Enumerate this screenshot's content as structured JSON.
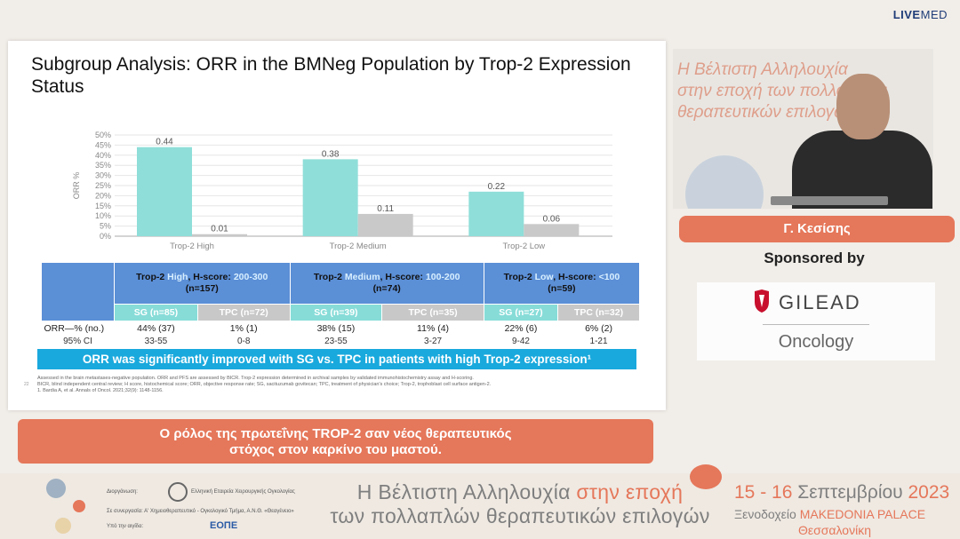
{
  "brand": {
    "live": "LIVE",
    "med": "MED"
  },
  "slide": {
    "title": "Subgroup Analysis: ORR in the BMNeg Population by Trop-2 Expression Status",
    "page_number": "22",
    "callout": "ORR was significantly improved with SG vs. TPC in patients with high Trop-2 expression¹",
    "footnote_1": "Assessed in the brain metastases-negative population. ORR and PFS are assessed by BICR. Trop-2 expression determined in archival samples by validated immunohistochemistry assay and H-scoring.",
    "footnote_2": "BICR, blind independent central review; H score, histochemical score; ORR, objective response rate; SG, sacituzumab govitecan; TPC, treatment of physician's choice; Trop-2, trophoblast cell surface antigen-2.",
    "footnote_3": "1. Bardia A, et al. Annals of Oncol. 2021;32(9): 1148-1156."
  },
  "chart_data": {
    "type": "bar",
    "ylabel": "ORR %",
    "ylim": [
      0,
      50
    ],
    "yticks": [
      "0%",
      "5%",
      "10%",
      "15%",
      "20%",
      "25%",
      "30%",
      "35%",
      "40%",
      "45%",
      "50%"
    ],
    "categories": [
      "Trop-2 High",
      "Trop-2 Medium",
      "Trop-2 Low"
    ],
    "series": [
      {
        "name": "SG",
        "color": "#8fded9",
        "values": [
          0.44,
          0.38,
          0.22
        ]
      },
      {
        "name": "TPC",
        "color": "#c9c9c9",
        "values": [
          0.01,
          0.11,
          0.06
        ]
      }
    ],
    "labels": [
      [
        "0.44",
        "0.38",
        "0.22"
      ],
      [
        "0.01",
        "0.11",
        "0.06"
      ]
    ]
  },
  "table": {
    "groups": [
      {
        "pre": "Trop-2 ",
        "hi": "High",
        "mid": ", H-score: ",
        "score": "200-300",
        "n": "(n=157)"
      },
      {
        "pre": "Trop-2 ",
        "hi": "Medium",
        "mid": ", H-score: ",
        "score": "100-200",
        "n": "(n=74)"
      },
      {
        "pre": "Trop-2 ",
        "hi": "Low",
        "mid": ", H-score: ",
        "score": "<100",
        "n": "(n=59)"
      }
    ],
    "arms": [
      "SG (n=85)",
      "TPC (n=72)",
      "SG (n=39)",
      "TPC (n=35)",
      "SG (n=27)",
      "TPC (n=32)"
    ],
    "orr_label": "ORR—% (no.)",
    "orr": [
      "44% (37)",
      "1% (1)",
      "38% (15)",
      "11% (4)",
      "22% (6)",
      "6% (2)"
    ],
    "ci_label": "95% CI",
    "ci": [
      "33-55",
      "0-8",
      "23-55",
      "3-27",
      "9-42",
      "1-21"
    ]
  },
  "speaker": {
    "bg_text": [
      "Η Βέλτιστη Αλληλουχία",
      "στην εποχή των πολλαπλών",
      "θεραπευτικών επιλογών"
    ],
    "name": "Γ. Κεσίσης"
  },
  "sponsor": {
    "label": "Sponsored by",
    "company": "GILEAD",
    "division": "Oncology"
  },
  "subtitle": {
    "line1": "Ο ρόλος της πρωτεΐνης TROP-2 σαν νέος θεραπευτικός",
    "line2": "στόχος στον καρκίνο του μαστού."
  },
  "banner": {
    "org1_prefix": "Διοργάνωση:",
    "org1": "Ελληνική Εταιρεία Χειρουργικής Ογκολογίας",
    "org2_prefix": "Σε συνεργασία:",
    "org2": "Α' Χημειοθεραπευτικό - Ογκολογικό Τμήμα, Α.Ν.Θ. «Θεαγένειο»",
    "org3_prefix": "Υπό την αιγίδα:",
    "eope": "ΕΟΠΕ",
    "title_l1a": "Η Βέλτιστη Αλληλουχία ",
    "title_l1b": "στην",
    "title_l1c": " εποχή",
    "title_l2": "των πολλαπλών θεραπευτικών επιλογών",
    "date_a": "15 - 16 ",
    "date_b": "Σεπτεμβρίου",
    "date_c": " 2023",
    "venue_a": "Ξενοδοχείο ",
    "venue_b": "MAKEDONIA PALACE",
    "city": "Θεσσαλονίκη"
  }
}
